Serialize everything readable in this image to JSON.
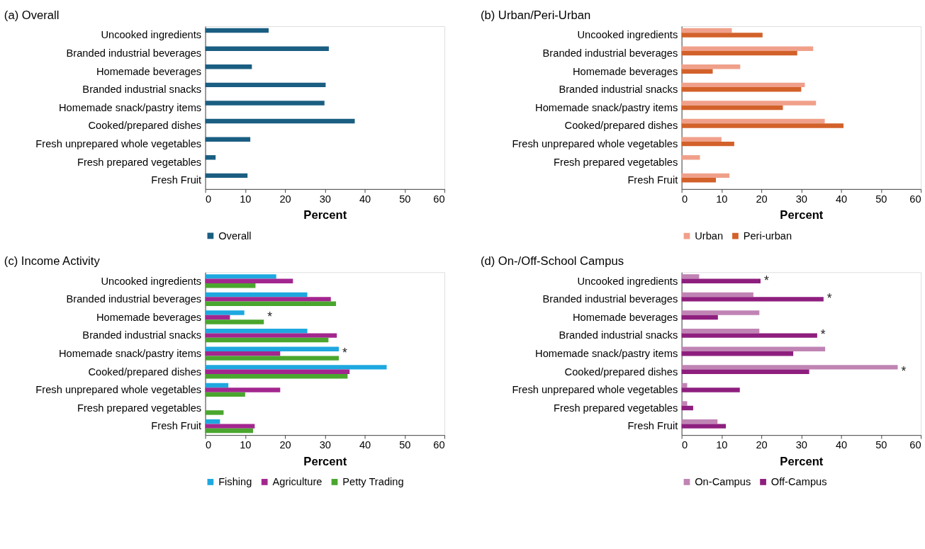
{
  "chart_data": [
    {
      "type": "bar",
      "orientation": "horizontal",
      "title": "(a) Overall",
      "xlabel": "Percent",
      "xlim": [
        0,
        60
      ],
      "xticks": [
        0,
        10,
        20,
        30,
        40,
        50,
        60
      ],
      "grid": false,
      "legend": "bottom",
      "categories": [
        "Uncooked ingredients",
        "Branded industrial beverages",
        "Homemade beverages",
        "Branded industrial snacks",
        "Homemade snack/pastry items",
        "Cooked/prepared dishes",
        "Fresh unprepared whole vegetables",
        "Fresh prepared vegetables",
        "Fresh Fruit"
      ],
      "series": [
        {
          "name": "Overall",
          "color": "#1a5e82",
          "values": [
            15.9,
            31.0,
            11.7,
            30.2,
            29.9,
            37.5,
            11.3,
            2.6,
            10.6
          ]
        }
      ]
    },
    {
      "type": "bar",
      "orientation": "horizontal",
      "title": "(b) Urban/Peri-Urban",
      "xlabel": "Percent",
      "xlim": [
        0,
        60
      ],
      "xticks": [
        0,
        10,
        20,
        30,
        40,
        50,
        60
      ],
      "grid": false,
      "legend": "bottom",
      "categories": [
        "Uncooked ingredients",
        "Branded industrial beverages",
        "Homemade beverages",
        "Branded industrial snacks",
        "Homemade snack/pastry items",
        "Cooked/prepared dishes",
        "Fresh unprepared whole vegetables",
        "Fresh prepared vegetables",
        "Fresh Fruit"
      ],
      "series": [
        {
          "name": "Urban",
          "color": "#f0a08a",
          "values": [
            12.6,
            33.0,
            14.7,
            30.9,
            33.7,
            35.9,
            10.0,
            4.6,
            12.0
          ]
        },
        {
          "name": "Peri-urban",
          "color": "#d2612a",
          "values": [
            20.3,
            29.0,
            7.8,
            30.0,
            25.4,
            40.6,
            13.2,
            null,
            8.6
          ]
        }
      ]
    },
    {
      "type": "bar",
      "orientation": "horizontal",
      "title": "(c) Income Activity",
      "xlabel": "Percent",
      "xlim": [
        0,
        60
      ],
      "xticks": [
        0,
        10,
        20,
        30,
        40,
        50,
        60
      ],
      "grid": false,
      "legend": "bottom",
      "categories": [
        "Uncooked ingredients",
        "Branded industrial beverages",
        "Homemade beverages",
        "Branded industrial snacks",
        "Homemade snack/pastry items",
        "Cooked/prepared dishes",
        "Fresh unprepared whole vegetables",
        "Fresh prepared vegetables",
        "Fresh Fruit"
      ],
      "series": [
        {
          "name": "Fishing",
          "color": "#1ea8df",
          "values": [
            17.8,
            25.6,
            9.8,
            25.6,
            33.5,
            45.5,
            5.8,
            null,
            3.7
          ]
        },
        {
          "name": "Agriculture",
          "color": "#a3268f",
          "values": [
            22.0,
            31.5,
            6.2,
            33.0,
            18.8,
            36.2,
            18.8,
            null,
            12.4
          ]
        },
        {
          "name": "Petty Trading",
          "color": "#4aa62e",
          "values": [
            12.6,
            32.8,
            14.7,
            30.9,
            33.5,
            35.7,
            10.0,
            4.6,
            12.0
          ]
        }
      ],
      "annotations": [
        {
          "text": "*",
          "x": 14.7,
          "y": "Homemade beverages"
        },
        {
          "text": "*",
          "x": 33.5,
          "y": "Homemade snack/pastry items"
        }
      ]
    },
    {
      "type": "bar",
      "orientation": "horizontal",
      "title": "(d) On-/Off-School Campus",
      "xlabel": "Percent",
      "xlim": [
        0,
        60
      ],
      "xticks": [
        0,
        10,
        20,
        30,
        40,
        50,
        60
      ],
      "grid": false,
      "legend": "bottom",
      "categories": [
        "Uncooked ingredients",
        "Branded industrial beverages",
        "Homemade beverages",
        "Branded industrial snacks",
        "Homemade snack/pastry items",
        "Cooked/prepared dishes",
        "Fresh unprepared whole vegetables",
        "Fresh prepared vegetables",
        "Fresh Fruit"
      ],
      "series": [
        {
          "name": "On-Campus",
          "color": "#c084b4",
          "values": [
            4.4,
            18.0,
            19.5,
            19.5,
            36.0,
            54.2,
            1.4,
            1.4,
            9.0
          ]
        },
        {
          "name": "Off-Campus",
          "color": "#8e1f7e",
          "values": [
            19.8,
            35.6,
            9.1,
            34.0,
            28.0,
            32.0,
            14.6,
            2.9,
            11.1
          ]
        }
      ],
      "annotations": [
        {
          "text": "*",
          "x": 19.8,
          "y": "Uncooked ingredients"
        },
        {
          "text": "*",
          "x": 35.6,
          "y": "Branded industrial beverages"
        },
        {
          "text": "*",
          "x": 34.0,
          "y": "Branded industrial snacks"
        },
        {
          "text": "*",
          "x": 54.2,
          "y": "Cooked/prepared dishes"
        }
      ]
    }
  ]
}
